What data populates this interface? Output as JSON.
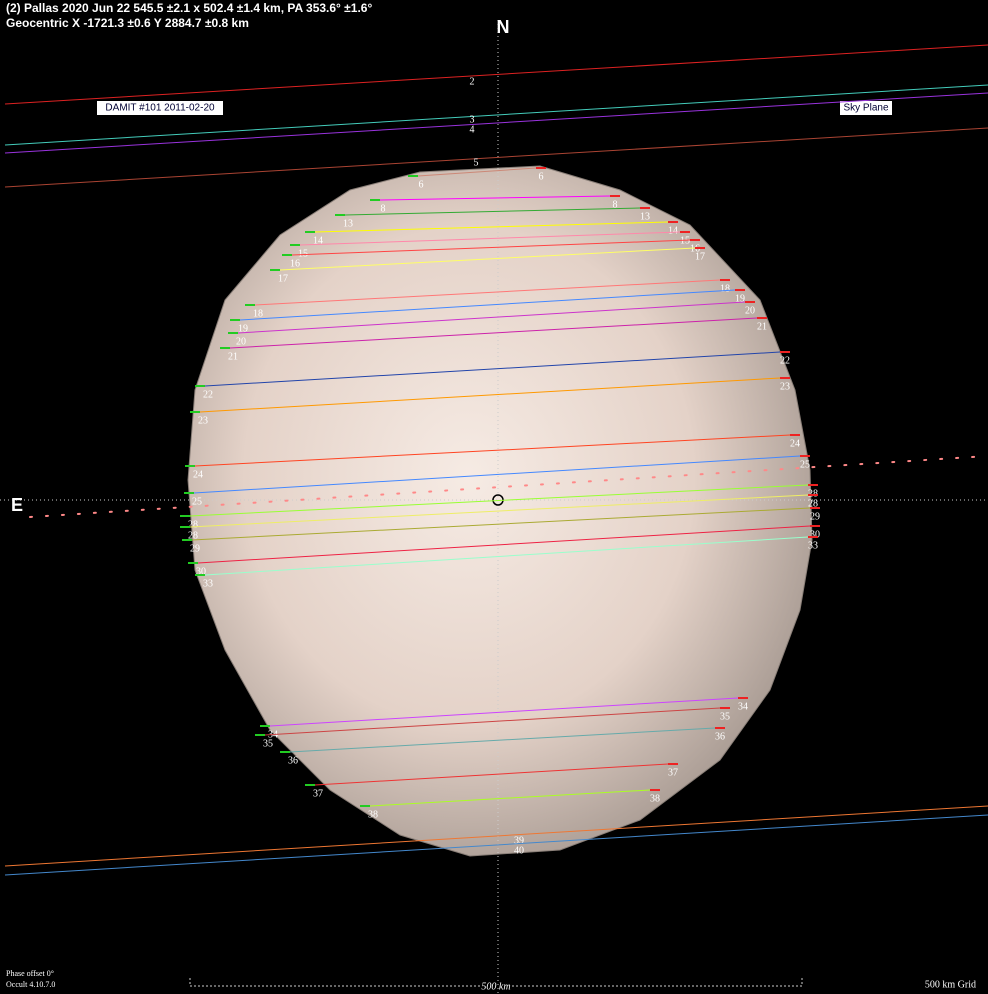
{
  "header": {
    "line1": "(2) Pallas  2020 Jun 22  545.5 ±2.1 x 502.4 ±1.4 km, PA 353.6° ±1.6°",
    "line2": "Geocentric X  -1721.3 ±0.6  Y 2884.7 ±0.8 km"
  },
  "compass": {
    "north": "N",
    "east": "E"
  },
  "model_label": "DAMIT #101 2011-02-20",
  "sky_plane_label": "Sky Plane",
  "limit_lines": [
    "2",
    "3",
    "4",
    "5",
    "39",
    "40"
  ],
  "chords": [
    "6",
    "8",
    "13",
    "14",
    "15",
    "16",
    "17",
    "18",
    "19",
    "20",
    "21",
    "22",
    "23",
    "24",
    "25",
    "28",
    "28",
    "29",
    "30",
    "33",
    "34",
    "35",
    "36",
    "37",
    "38"
  ],
  "footer": {
    "phase": "Phase offset 0°",
    "version": "Occult 4.10.7.0",
    "scale": "500 km",
    "grid": "500 km Grid"
  }
}
